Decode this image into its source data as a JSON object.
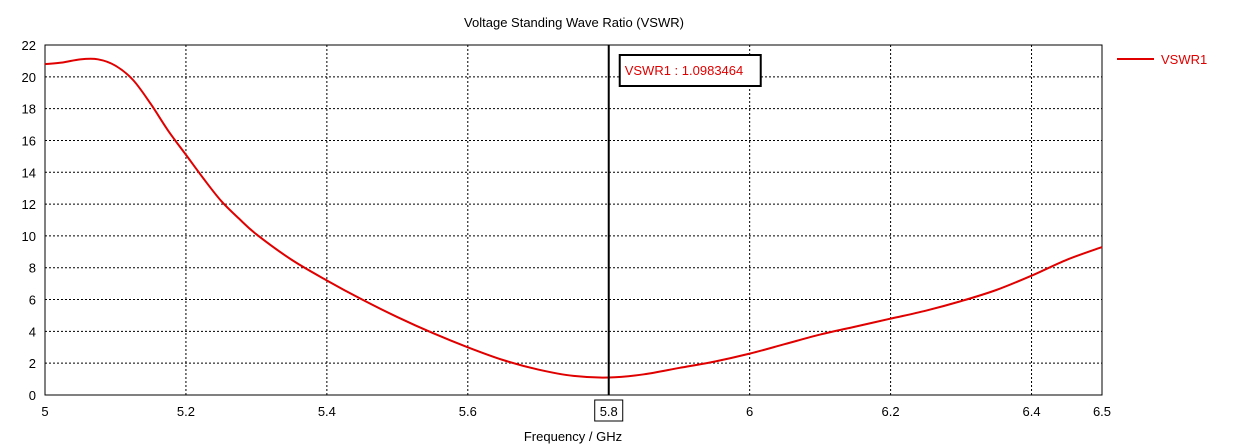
{
  "chart_data": {
    "type": "line",
    "title": "Voltage Standing Wave Ratio (VSWR)",
    "xlabel": "Frequency / GHz",
    "ylabel": "",
    "xlim": [
      5,
      6.5
    ],
    "ylim": [
      0,
      22
    ],
    "x_ticks": [
      5,
      5.2,
      5.4,
      5.6,
      5.8,
      6,
      6.2,
      6.4,
      6.5
    ],
    "x_tick_labels": [
      "5",
      "5.2",
      "5.4",
      "5.6",
      "5.8",
      "6",
      "6.2",
      "6.4",
      "6.5"
    ],
    "y_ticks": [
      0,
      2,
      4,
      6,
      8,
      10,
      12,
      14,
      16,
      18,
      20,
      22
    ],
    "y_tick_labels": [
      "0",
      "2",
      "4",
      "6",
      "8",
      "10",
      "12",
      "14",
      "16",
      "18",
      "20",
      "22"
    ],
    "grid": true,
    "legend_position": "right",
    "series": [
      {
        "name": "VSWR1",
        "color": "#e00000",
        "x": [
          5.0,
          5.025,
          5.05,
          5.075,
          5.1,
          5.125,
          5.15,
          5.175,
          5.2,
          5.225,
          5.25,
          5.275,
          5.3,
          5.35,
          5.4,
          5.45,
          5.5,
          5.55,
          5.6,
          5.65,
          5.7,
          5.75,
          5.8,
          5.85,
          5.9,
          5.95,
          6.0,
          6.05,
          6.1,
          6.15,
          6.2,
          6.25,
          6.3,
          6.35,
          6.4,
          6.45,
          6.5
        ],
        "values": [
          20.8,
          20.9,
          21.1,
          21.1,
          20.7,
          19.8,
          18.3,
          16.6,
          15.1,
          13.6,
          12.2,
          11.1,
          10.1,
          8.5,
          7.2,
          6.0,
          4.9,
          3.9,
          3.0,
          2.2,
          1.6,
          1.2,
          1.1,
          1.3,
          1.7,
          2.1,
          2.6,
          3.2,
          3.8,
          4.3,
          4.8,
          5.3,
          5.9,
          6.6,
          7.5,
          8.5,
          9.3
        ]
      }
    ],
    "marker": {
      "x": 5.8,
      "label": "VSWR1 : 1.0983464",
      "x_label": "5.8"
    }
  }
}
